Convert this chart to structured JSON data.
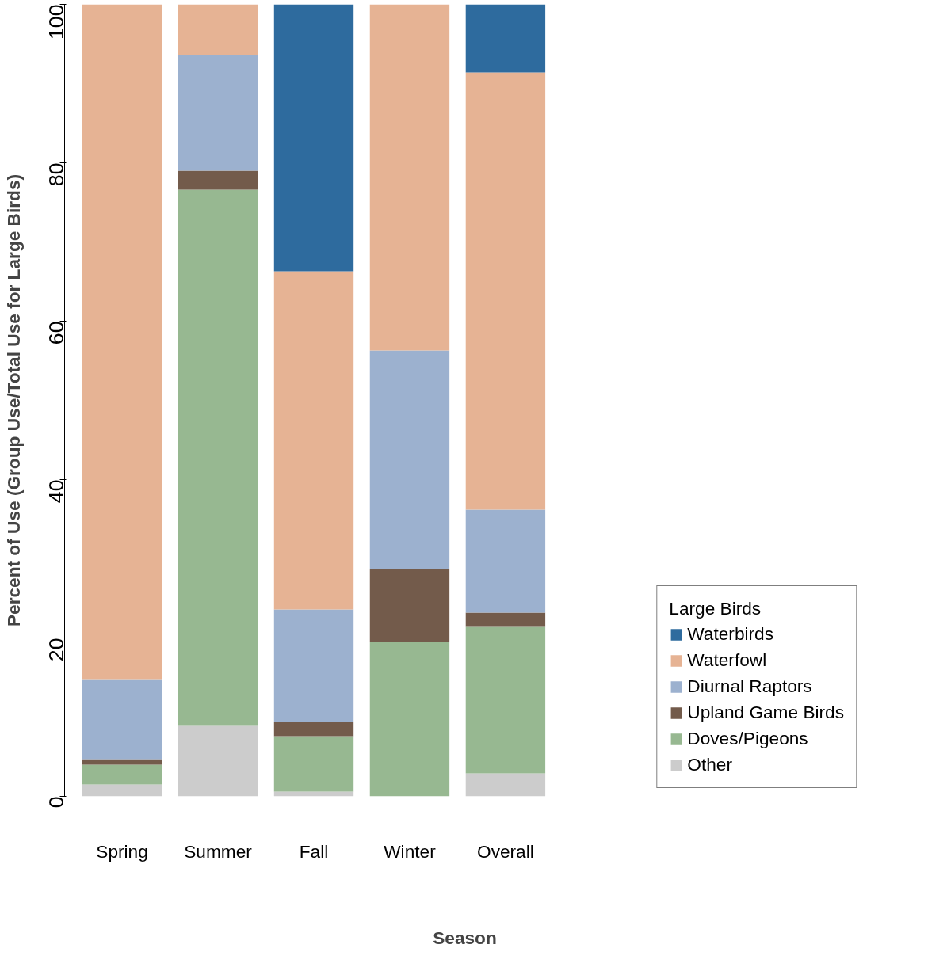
{
  "chart_data": {
    "type": "bar",
    "stacked": true,
    "xlabel": "Season",
    "ylabel": "Percent of Use (Group Use/Total Use for Large Birds)",
    "legend_title": "Large Birds",
    "legend": "right",
    "grid": false,
    "categories": [
      "Spring",
      "Summer",
      "Fall",
      "Winter",
      "Overall"
    ],
    "ylim": [
      0,
      100
    ],
    "yticks": [
      0,
      20,
      40,
      60,
      80,
      100
    ],
    "series": [
      {
        "name": "Other",
        "color": "#cccccc",
        "values": [
          1.5,
          8.9,
          0.6,
          0,
          2.9
        ]
      },
      {
        "name": "Doves/Pigeons",
        "color": "#97b891",
        "values": [
          2.5,
          67.7,
          7.0,
          19.5,
          18.5
        ]
      },
      {
        "name": "Upland Game Birds",
        "color": "#735b4b",
        "values": [
          0.7,
          2.4,
          1.8,
          9.2,
          1.8
        ]
      },
      {
        "name": "Diurnal Raptors",
        "color": "#9cb1cf",
        "values": [
          10.1,
          14.6,
          14.2,
          27.6,
          13.0
        ]
      },
      {
        "name": "Waterfowl",
        "color": "#e6b394",
        "values": [
          85.2,
          6.4,
          42.7,
          43.7,
          55.2
        ]
      },
      {
        "name": "Waterbirds",
        "color": "#2e6b9e",
        "values": [
          0,
          0,
          33.7,
          0,
          8.6
        ]
      }
    ]
  }
}
